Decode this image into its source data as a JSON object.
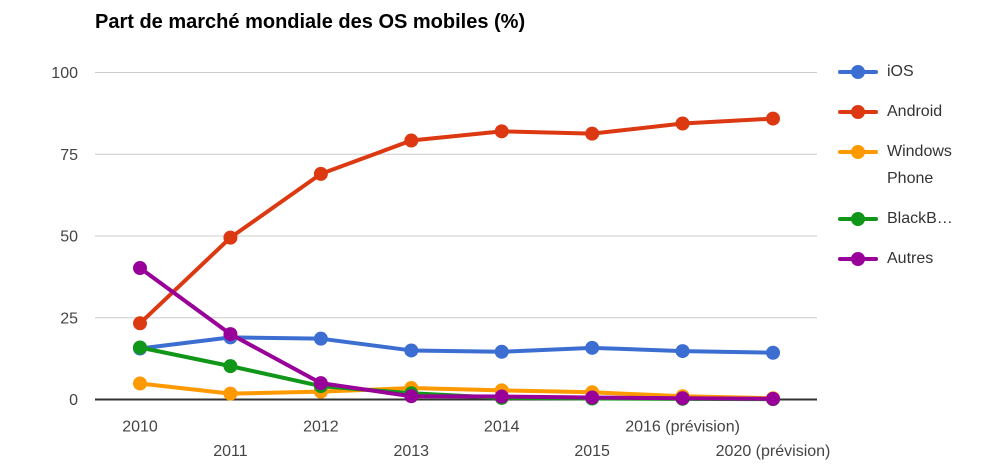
{
  "title": "Part de marché mondiale des OS mobiles (%)",
  "chart_data": {
    "type": "line",
    "title": "Part de marché mondiale des OS mobiles (%)",
    "categories": [
      "2010",
      "2011",
      "2012",
      "2013",
      "2014",
      "2015",
      "2016 (prévision)",
      "2020 (prévision)"
    ],
    "y_ticks": [
      0,
      25,
      50,
      75,
      100
    ],
    "ylim": [
      0,
      100
    ],
    "grid": "horizontal",
    "legend_position": "right",
    "series": [
      {
        "name": "iOS",
        "color": "#3C6ED2",
        "values": [
          15.6,
          19.0,
          18.6,
          15.0,
          14.6,
          15.8,
          14.8,
          14.3
        ]
      },
      {
        "name": "Android",
        "color": "#DC3912",
        "values": [
          23.3,
          49.5,
          69.0,
          79.2,
          82.0,
          81.3,
          84.4,
          85.9
        ]
      },
      {
        "name": "Windows Phone",
        "color": "#FF9900",
        "values": [
          4.9,
          1.8,
          2.4,
          3.5,
          2.8,
          2.2,
          1.0,
          0.4
        ]
      },
      {
        "name": "BlackB…",
        "color": "#109618",
        "values": [
          15.9,
          10.2,
          4.1,
          1.9,
          0.5,
          0.3,
          0.2,
          0.1
        ]
      },
      {
        "name": "Autres",
        "color": "#990099",
        "values": [
          40.2,
          20.0,
          5.0,
          1.0,
          0.9,
          0.6,
          0.4,
          0.2
        ]
      }
    ],
    "axis_text_color": "#444444",
    "grid_color": "#cccccc",
    "baseline_color": "#333333"
  }
}
